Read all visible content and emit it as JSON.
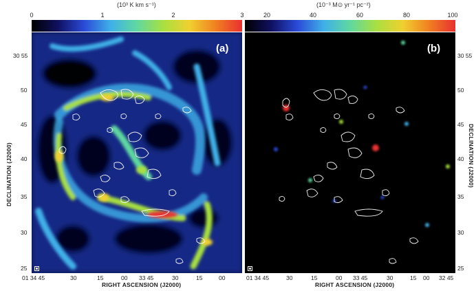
{
  "panel_a": {
    "label": "(a)",
    "colorbar": {
      "units": "(10³ K km s⁻¹)",
      "ticks": [
        "0",
        "1",
        "2",
        "3"
      ],
      "stops": [
        "#000000",
        "#101060",
        "#2a4bd8",
        "#3fb0e8",
        "#5fd8a0",
        "#a8e040",
        "#f0d030",
        "#f08020",
        "#e83030"
      ]
    }
  },
  "panel_b": {
    "label": "(b)",
    "colorbar": {
      "units": "(10⁻³ M⊙ yr⁻¹ pc⁻²)",
      "ticks": [
        "20",
        "40",
        "60",
        "80",
        "100"
      ],
      "stops": [
        "#000000",
        "#101060",
        "#2a4bd8",
        "#3fb0e8",
        "#5fd8a0",
        "#a8e040",
        "#f0d030",
        "#f08020",
        "#e83030"
      ]
    }
  },
  "axes": {
    "dec_title": "DECLINATION (J2000)",
    "ra_title": "RIGHT ASCENSION (J2000)",
    "dec_ticks": [
      "30 55",
      "50",
      "45",
      "40",
      "35",
      "30",
      "25"
    ],
    "ra_ticks": [
      "01 34 45",
      "30",
      "15",
      "00",
      "33 45",
      "30",
      "15",
      "00",
      "32 45"
    ]
  }
}
